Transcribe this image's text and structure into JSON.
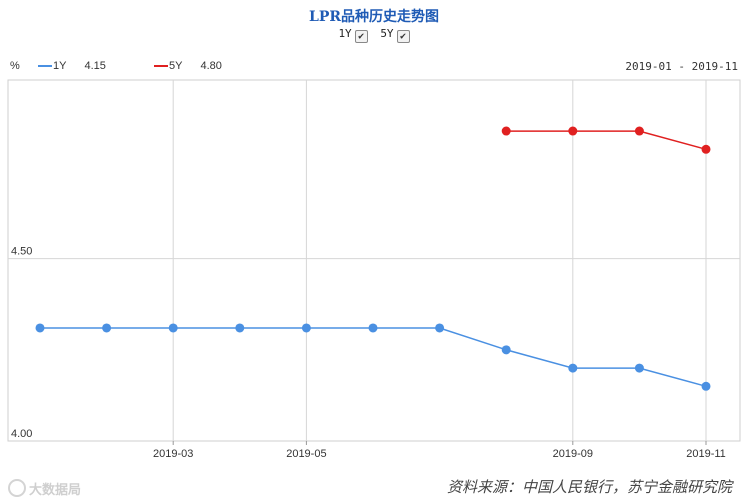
{
  "header": {
    "title": "LPR品种历史走势图",
    "toggles": [
      {
        "label": "1Y",
        "checked": true
      },
      {
        "label": "5Y",
        "checked": true
      }
    ]
  },
  "legend": {
    "unit": "%",
    "series": [
      {
        "name": "1Y",
        "latest": "4.15",
        "color": "#4a90e2"
      },
      {
        "name": "5Y",
        "latest": "4.80",
        "color": "#e02020"
      }
    ],
    "date_range": "2019-01 - 2019-11"
  },
  "chart_data": {
    "type": "line",
    "x": [
      "2019-01",
      "2019-02",
      "2019-03",
      "2019-04",
      "2019-05",
      "2019-06",
      "2019-07",
      "2019-08",
      "2019-09",
      "2019-10",
      "2019-11"
    ],
    "xtick_labels": [
      {
        "index": 2,
        "label": "2019-03"
      },
      {
        "index": 4,
        "label": "2019-05"
      },
      {
        "index": 8,
        "label": "2019-09"
      },
      {
        "index": 10,
        "label": "2019-11"
      }
    ],
    "ytick_labels": [
      {
        "value": 4.0,
        "label": "4.00"
      },
      {
        "value": 4.5,
        "label": "4.50"
      }
    ],
    "ylim": [
      4.0,
      4.99
    ],
    "series": [
      {
        "name": "1Y",
        "color": "#4a90e2",
        "values": [
          4.31,
          4.31,
          4.31,
          4.31,
          4.31,
          4.31,
          4.31,
          4.25,
          4.2,
          4.2,
          4.15
        ]
      },
      {
        "name": "5Y",
        "color": "#e02020",
        "values": [
          null,
          null,
          null,
          null,
          null,
          null,
          null,
          4.85,
          4.85,
          4.85,
          4.8
        ]
      }
    ],
    "grid": true
  },
  "footer": {
    "watermark": "大数据局",
    "source": "资料来源：中国人民银行，苏宁金融研究院"
  }
}
